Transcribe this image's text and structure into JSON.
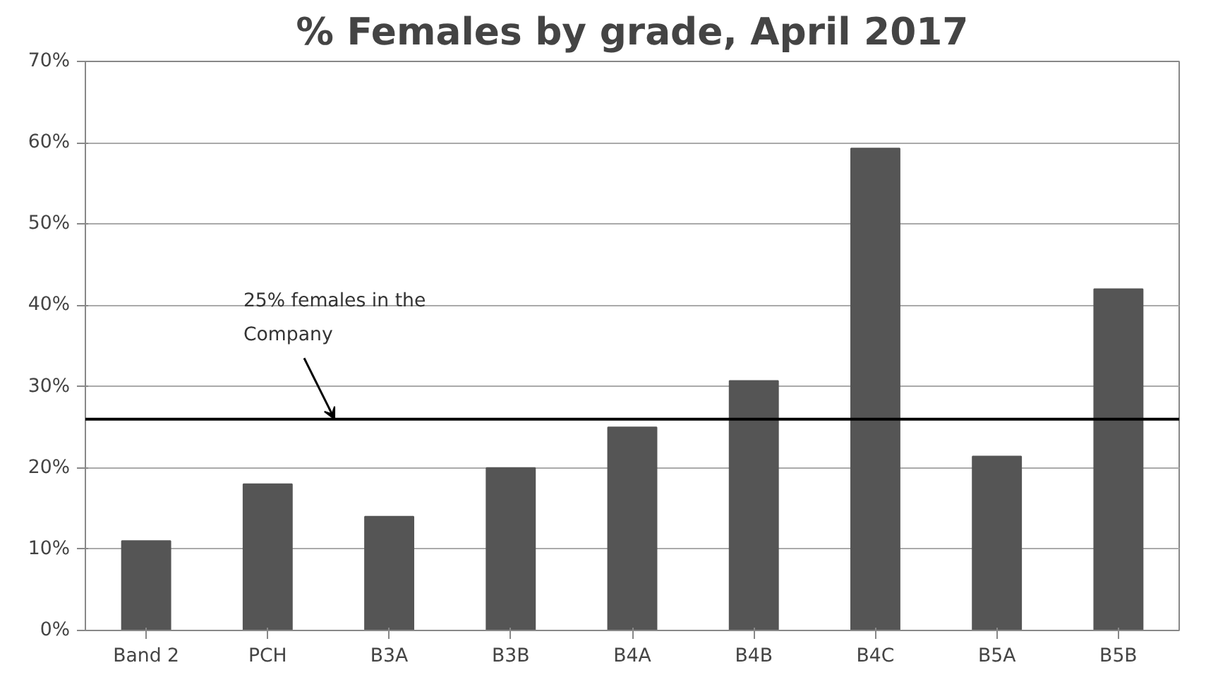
{
  "chart_data": {
    "type": "bar",
    "title": "% Females by grade, April 2017",
    "categories": [
      "Band 2",
      "PCH",
      "B3A",
      "B3B",
      "B4A",
      "B4B",
      "B4C",
      "B5A",
      "B5B"
    ],
    "values": [
      11,
      18,
      14,
      20,
      25,
      30.7,
      59.3,
      21.4,
      42
    ],
    "color": "#555555",
    "ylim": [
      0,
      70
    ],
    "yticks": [
      {
        "value": 0,
        "label": "0%"
      },
      {
        "value": 10,
        "label": "10%"
      },
      {
        "value": 20,
        "label": "20%"
      },
      {
        "value": 30,
        "label": "30%"
      },
      {
        "value": 40,
        "label": "40%"
      },
      {
        "value": 50,
        "label": "50%"
      },
      {
        "value": 60,
        "label": "60%"
      },
      {
        "value": 70,
        "label": "70%"
      }
    ],
    "grid": "y",
    "ref_lines": [
      {
        "axis": "y",
        "value": 26,
        "label": "25% females  in the\nCompany",
        "color": "#000000",
        "line_style": "solid"
      }
    ]
  }
}
